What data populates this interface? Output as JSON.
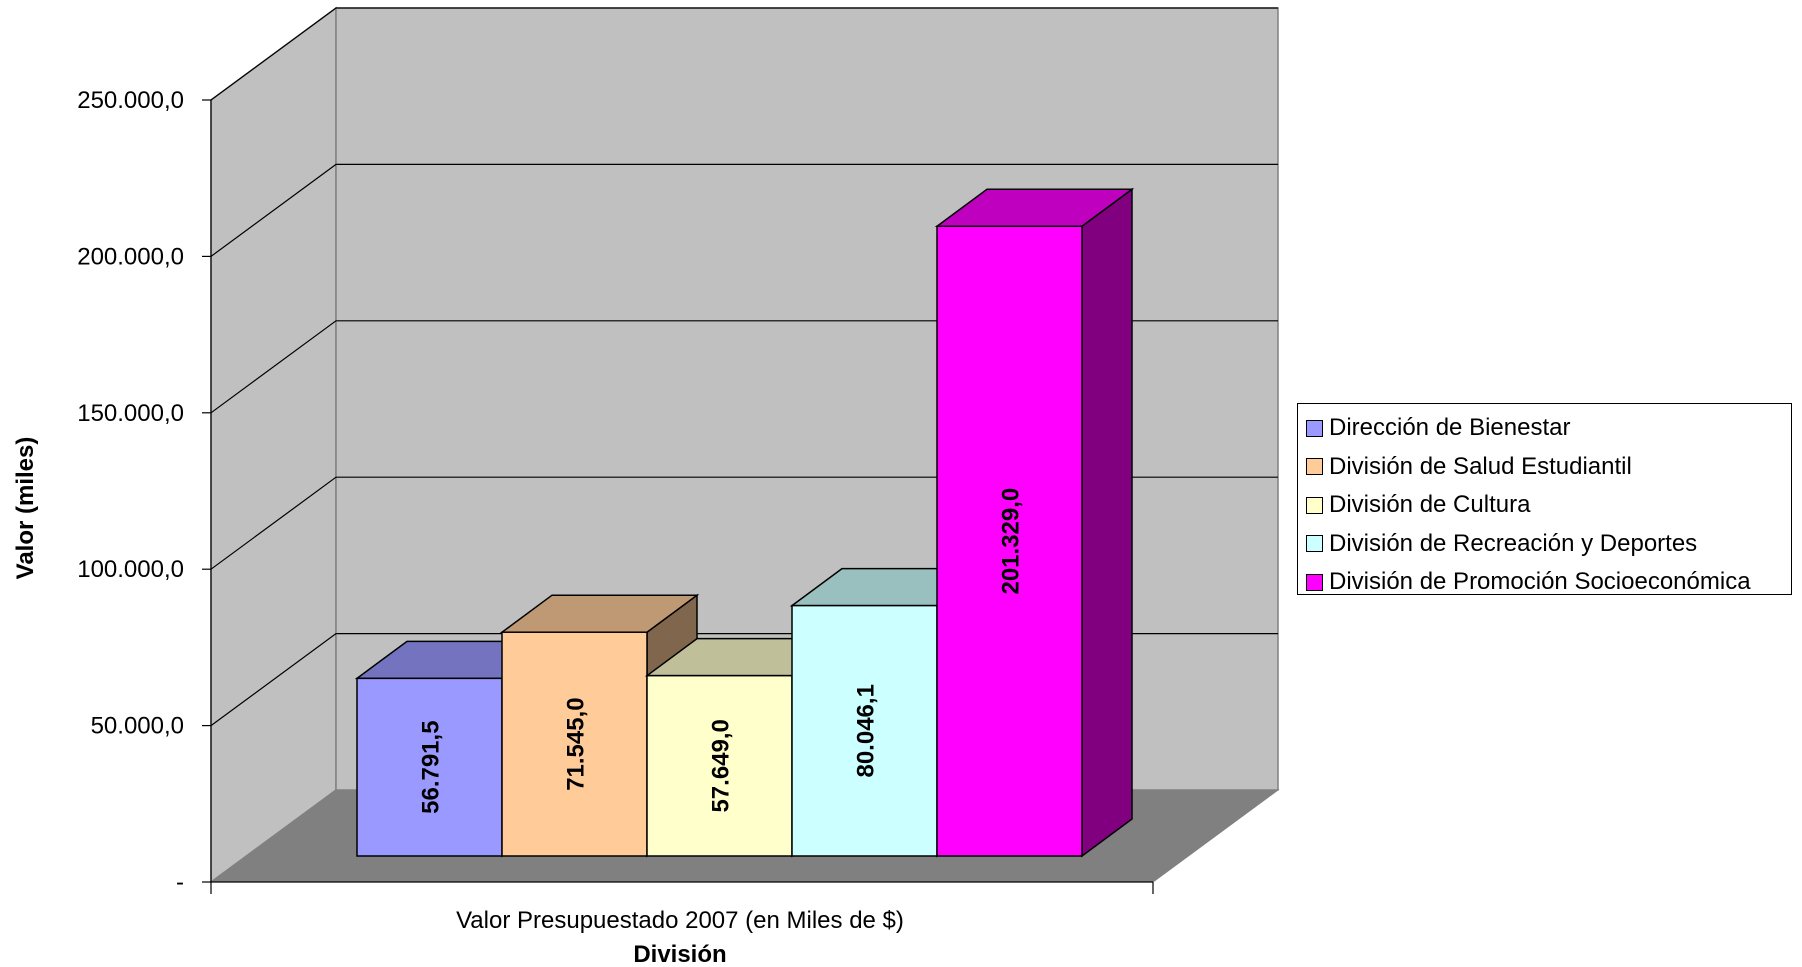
{
  "chart_data": {
    "type": "bar",
    "category": "Valor Presupuestado 2007 (en Miles de $)",
    "xlabel": "División",
    "ylabel": "Valor (miles)",
    "ylim": [
      0,
      250000
    ],
    "yticks": [
      0,
      50000,
      100000,
      150000,
      200000,
      250000
    ],
    "ytick_labels": [
      "-",
      "50.000,0",
      "100.000,0",
      "150.000,0",
      "200.000,0",
      "250.000,0"
    ],
    "grid": true,
    "legend_position": "right",
    "series": [
      {
        "name": "Dirección de Bienestar",
        "value": 56791.5,
        "label": "56.791,5",
        "color": "#9999ff"
      },
      {
        "name": "División de Salud Estudiantil",
        "value": 71545.0,
        "label": "71.545,0",
        "color": "#ffcc99"
      },
      {
        "name": "División de Cultura",
        "value": 57649.0,
        "label": "57.649,0",
        "color": "#ffffcc"
      },
      {
        "name": "División de Recreación y Deportes",
        "value": 80046.1,
        "label": "80.046,1",
        "color": "#ccffff"
      },
      {
        "name": "División de Promoción Socioeconómica",
        "value": 201329.0,
        "label": "201.329,0",
        "color": "#ff00ff"
      }
    ],
    "colors": {
      "back_wall": "#c0c0c0",
      "side_wall": "#c0c0c0",
      "floor": "#808080"
    }
  }
}
